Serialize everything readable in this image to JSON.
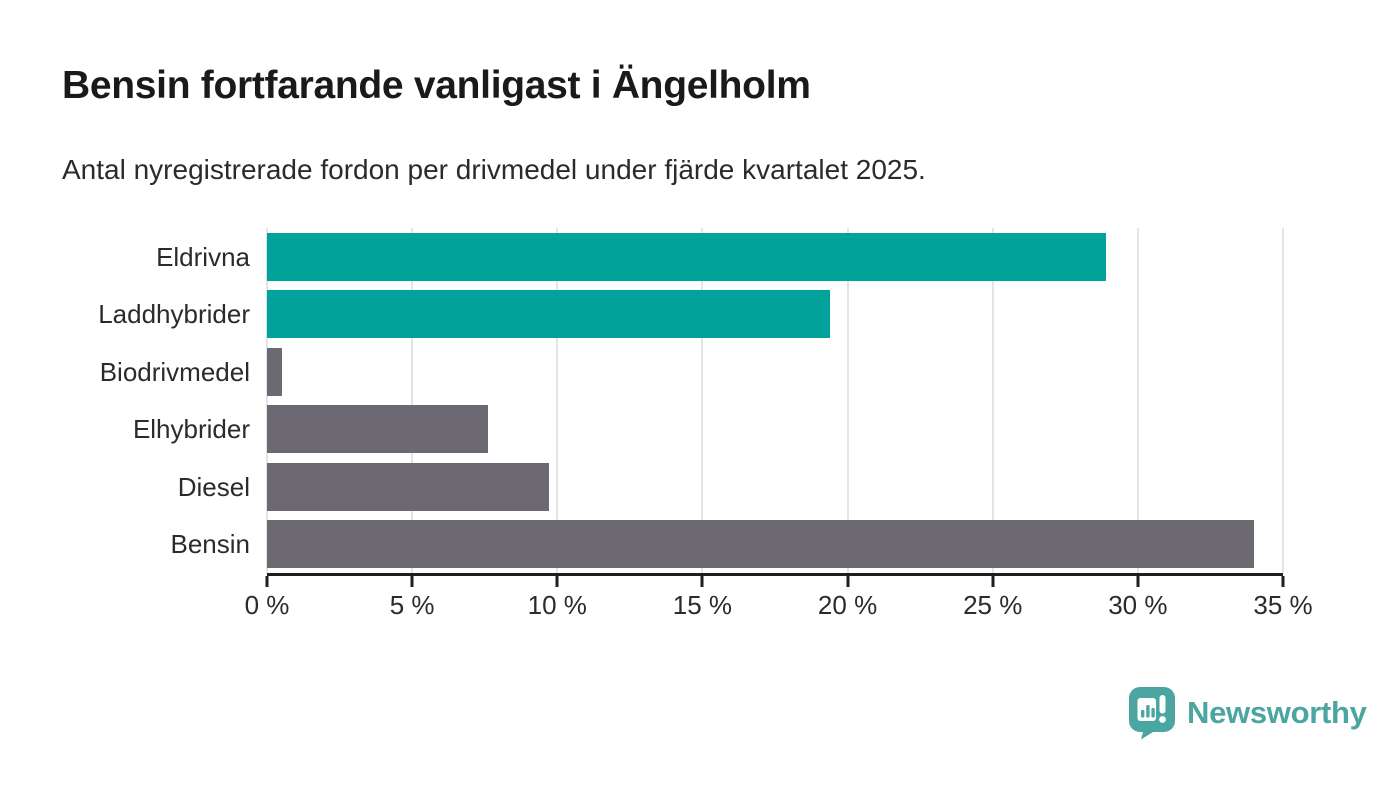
{
  "header": {
    "title": "Bensin fortfarande vanligast i Ängelholm",
    "subtitle": "Antal nyregistrerade fordon per drivmedel under fjärde kvartalet 2025."
  },
  "chart_data": {
    "type": "bar",
    "orientation": "horizontal",
    "title": "Bensin fortfarande vanligast i Ängelholm",
    "subtitle": "Antal nyregistrerade fordon per drivmedel under fjärde kvartalet 2025.",
    "categories": [
      "Eldrivna",
      "Laddhybrider",
      "Biodrivmedel",
      "Elhybrider",
      "Diesel",
      "Bensin"
    ],
    "values": [
      28.9,
      19.4,
      0.5,
      7.6,
      9.7,
      34.0
    ],
    "unit": "%",
    "xlabel": "",
    "ylabel": "",
    "xlim": [
      0,
      35
    ],
    "x_ticks": [
      0,
      5,
      10,
      15,
      20,
      25,
      30,
      35
    ],
    "x_tick_labels": [
      "0 %",
      "5 %",
      "10 %",
      "15 %",
      "20 %",
      "25 %",
      "30 %",
      "35 %"
    ],
    "grid": true,
    "legend": "none",
    "bar_colors": [
      "#00A29A",
      "#00A29A",
      "#6C6972",
      "#6C6972",
      "#6C6972",
      "#6C6972"
    ]
  },
  "colors": {
    "accent_teal": "#00A29A",
    "neutral_gray": "#6C6972",
    "axis": "#1f1f1f",
    "gridline": "#e4e4e4",
    "text": "#2b2b2b",
    "brand_teal": "#4BA5A1"
  },
  "footer": {
    "brand": "Newsworthy",
    "logo_icon": "newsworthy-bar-chart-pin-icon"
  }
}
